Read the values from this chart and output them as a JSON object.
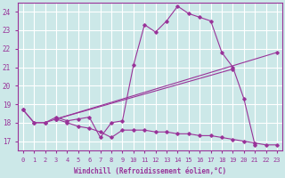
{
  "bg_color": "#cce8e8",
  "grid_color": "#ffffff",
  "line_color": "#993399",
  "marker_color": "#993399",
  "xlabel": "Windchill (Refroidissement éolien,°C)",
  "xlim": [
    -0.5,
    23.5
  ],
  "ylim": [
    16.5,
    24.5
  ],
  "yticks": [
    17,
    18,
    19,
    20,
    21,
    22,
    23,
    24
  ],
  "xticks": [
    0,
    1,
    2,
    3,
    4,
    5,
    6,
    7,
    8,
    9,
    10,
    11,
    12,
    13,
    14,
    15,
    16,
    17,
    18,
    19,
    20,
    21,
    22,
    23
  ],
  "series": [
    {
      "x": [
        0,
        1,
        2,
        3,
        4,
        5,
        6,
        7,
        8,
        9,
        10,
        11,
        12,
        13,
        14,
        15,
        16,
        17,
        18,
        19,
        20,
        21
      ],
      "y": [
        18.7,
        18.0,
        18.0,
        18.3,
        18.1,
        18.2,
        18.3,
        17.2,
        18.0,
        18.1,
        21.1,
        23.3,
        22.9,
        23.5,
        24.3,
        23.9,
        23.7,
        23.5,
        21.8,
        21.0,
        19.3,
        16.8
      ]
    },
    {
      "x": [
        3,
        23
      ],
      "y": [
        18.2,
        21.8
      ]
    },
    {
      "x": [
        3,
        19
      ],
      "y": [
        18.2,
        20.9
      ]
    },
    {
      "x": [
        0,
        1,
        2,
        3,
        4,
        5,
        6,
        7,
        8,
        9,
        10,
        11,
        12,
        13,
        14,
        15,
        16,
        17,
        18,
        19,
        20,
        21,
        22,
        23
      ],
      "y": [
        18.7,
        18.0,
        18.0,
        18.2,
        18.0,
        17.8,
        17.7,
        17.5,
        17.2,
        17.6,
        17.6,
        17.6,
        17.5,
        17.5,
        17.4,
        17.4,
        17.3,
        17.3,
        17.2,
        17.1,
        17.0,
        16.9,
        16.8,
        16.8
      ]
    }
  ]
}
